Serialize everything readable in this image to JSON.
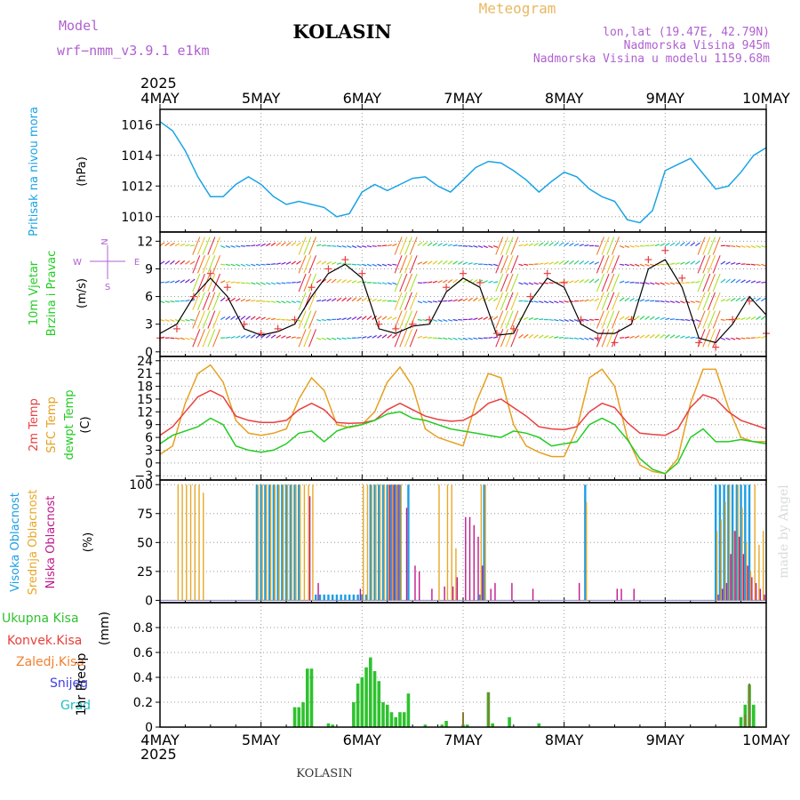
{
  "header": {
    "model_label": "Model",
    "model_name": "wrf−nmm_v3.9.1  e1km",
    "station": "KOLASIN",
    "product": "Meteogram",
    "coords": "lon,lat (19.47E, 42.79N)",
    "elevation": "Nadmorska Visina 945m",
    "model_elevation": "Nadmorska Visina u modelu 1159.68m",
    "footer_station": "KOLASIN",
    "watermark": "made by Angel"
  },
  "time_axis": {
    "year": "2025",
    "ticks": [
      "4MAY",
      "5MAY",
      "6MAY",
      "7MAY",
      "8MAY",
      "9MAY",
      "10MAY"
    ],
    "range_hours": [
      0,
      144
    ]
  },
  "colors": {
    "pressure": "#1aa3e6",
    "temp2m": "#e84040",
    "sfc": "#e6a020",
    "dewpt": "#22cc22",
    "cloud_high": "#1a9ee6",
    "cloud_mid": "#e6a828",
    "cloud_low": "#c0188c",
    "precip_total": "#2ec22e",
    "precip_conv": "#e8403a",
    "precip_frz": "#f08030",
    "precip_snow": "#4040e0",
    "precip_grad": "#20c0c0",
    "wind_speed": "#000000"
  },
  "chart_data": [
    {
      "type": "line",
      "panel": "pressure",
      "ylabel": "Pritisak na nivou mora",
      "unit": "(hPa)",
      "ylim": [
        1009,
        1017
      ],
      "yticks": [
        1010,
        1012,
        1014,
        1016
      ],
      "grid": true,
      "series": [
        {
          "x": [
            0,
            3,
            6,
            9,
            12,
            15,
            18,
            21,
            24,
            27,
            30,
            33,
            36,
            39,
            42,
            45,
            48,
            51,
            54,
            57,
            60,
            63,
            66,
            69,
            72,
            75,
            78,
            81,
            84,
            87,
            90,
            93,
            96,
            99,
            102,
            105,
            108,
            111,
            114,
            117,
            120,
            123,
            126,
            129,
            132,
            135,
            138,
            141,
            144
          ],
          "values": [
            1016.2,
            1015.6,
            1014.3,
            1012.6,
            1011.3,
            1011.3,
            1012.1,
            1012.6,
            1012.1,
            1011.3,
            1010.8,
            1011.0,
            1010.8,
            1010.6,
            1010.0,
            1010.2,
            1011.6,
            1012.1,
            1011.7,
            1012.1,
            1012.5,
            1012.6,
            1012.0,
            1011.6,
            1012.4,
            1013.2,
            1013.6,
            1013.5,
            1013.0,
            1012.4,
            1011.6,
            1012.3,
            1012.9,
            1012.6,
            1011.8,
            1011.3,
            1011.0,
            1009.8,
            1009.6,
            1010.4,
            1013.0,
            1013.4,
            1013.8,
            1012.8,
            1011.8,
            1012.0,
            1012.9,
            1014.0,
            1014.5
          ]
        }
      ]
    },
    {
      "type": "line",
      "panel": "wind",
      "ylabel": "10m Vjetar Brzina i Pravac",
      "unit": "(m/s)",
      "compass": [
        "N",
        "S",
        "W",
        "E"
      ],
      "ylim": [
        -0.5,
        13
      ],
      "yticks": [
        0,
        3,
        6,
        9,
        12
      ],
      "grid": true,
      "series": [
        {
          "name": "speed",
          "x": [
            0,
            4,
            8,
            12,
            16,
            20,
            24,
            28,
            32,
            36,
            40,
            44,
            48,
            52,
            56,
            60,
            64,
            68,
            72,
            76,
            80,
            84,
            88,
            92,
            96,
            100,
            104,
            108,
            112,
            116,
            120,
            124,
            128,
            132,
            136,
            140,
            144
          ],
          "values": [
            2,
            3,
            6,
            8,
            6,
            2.5,
            1.8,
            2.2,
            3,
            6,
            8.5,
            9.5,
            8,
            2.5,
            2,
            2.8,
            3,
            6.5,
            8,
            7,
            1.8,
            2,
            5.5,
            8,
            7,
            3,
            2,
            2,
            3,
            9,
            10,
            7,
            1.5,
            1,
            3,
            6,
            4
          ]
        },
        {
          "name": "gust",
          "x": [
            0,
            4,
            8,
            12,
            16,
            20,
            24,
            28,
            32,
            36,
            40,
            44,
            48,
            52,
            56,
            60,
            64,
            68,
            72,
            76,
            80,
            84,
            88,
            92,
            96,
            100,
            104,
            108,
            112,
            116,
            120,
            124,
            128,
            132,
            136,
            140,
            144
          ],
          "values": [
            1.5,
            2.5,
            6,
            8.5,
            7,
            3,
            2,
            2.5,
            3.5,
            7,
            9,
            10,
            8.5,
            3,
            2.5,
            3,
            3.5,
            7,
            8.5,
            7.5,
            2,
            2.5,
            6,
            8.5,
            7.5,
            3.5,
            1.5,
            1,
            3.5,
            10,
            11,
            8,
            1,
            0.5,
            3.5,
            5.5,
            2
          ]
        }
      ]
    },
    {
      "type": "line",
      "panel": "temperature",
      "unit": "(C)",
      "ylim": [
        -4,
        25
      ],
      "yticks": [
        -3,
        0,
        3,
        6,
        9,
        12,
        15,
        18,
        21,
        24
      ],
      "grid": true,
      "series": [
        {
          "name": "2m Temp",
          "x": [
            0,
            3,
            6,
            9,
            12,
            15,
            18,
            21,
            24,
            27,
            30,
            33,
            36,
            39,
            42,
            45,
            48,
            51,
            54,
            57,
            60,
            63,
            66,
            69,
            72,
            75,
            78,
            81,
            84,
            87,
            90,
            93,
            96,
            99,
            102,
            105,
            108,
            111,
            114,
            117,
            120,
            123,
            126,
            129,
            132,
            135,
            138,
            141,
            144
          ],
          "values": [
            6.5,
            8.5,
            12,
            15.5,
            17,
            15.5,
            11,
            10,
            9.5,
            9.5,
            10,
            12.5,
            14,
            12.5,
            9.5,
            9.3,
            9.4,
            10,
            12.5,
            14,
            12.5,
            11,
            10.2,
            9.8,
            10,
            11.5,
            14,
            15,
            13,
            11,
            8.5,
            8,
            7.8,
            8.5,
            12,
            14,
            13,
            9.5,
            7,
            6.7,
            6.5,
            8,
            13,
            16,
            15,
            12,
            10,
            9,
            8
          ]
        },
        {
          "name": "SFC Temp",
          "x": [
            0,
            3,
            6,
            9,
            12,
            15,
            18,
            21,
            24,
            27,
            30,
            33,
            36,
            39,
            42,
            45,
            48,
            51,
            54,
            57,
            60,
            63,
            66,
            69,
            72,
            75,
            78,
            81,
            84,
            87,
            90,
            93,
            96,
            99,
            102,
            105,
            108,
            111,
            114,
            117,
            120,
            123,
            126,
            129,
            132,
            135,
            138,
            141,
            144
          ],
          "values": [
            2,
            4,
            14,
            21,
            23,
            19,
            10,
            7,
            6.5,
            7,
            8,
            15,
            20,
            17,
            9,
            8.3,
            9,
            12,
            19,
            22.5,
            18,
            8,
            6,
            5,
            4,
            14,
            21,
            20,
            9,
            4,
            2.5,
            1.5,
            1.5,
            8,
            20,
            22,
            18,
            6,
            -0.5,
            -2,
            -2.5,
            1,
            14,
            22,
            22,
            13,
            6,
            5,
            5
          ]
        },
        {
          "name": "dewpt Temp",
          "x": [
            0,
            3,
            6,
            9,
            12,
            15,
            18,
            21,
            24,
            27,
            30,
            33,
            36,
            39,
            42,
            45,
            48,
            51,
            54,
            57,
            60,
            63,
            66,
            69,
            72,
            75,
            78,
            81,
            84,
            87,
            90,
            93,
            96,
            99,
            102,
            105,
            108,
            111,
            114,
            117,
            120,
            123,
            126,
            129,
            132,
            135,
            138,
            141,
            144
          ],
          "values": [
            4.5,
            6.5,
            7.5,
            8.5,
            10.5,
            9,
            4,
            3,
            2.5,
            3,
            4.5,
            7,
            7.5,
            5,
            7.5,
            8.5,
            9,
            10,
            11.5,
            12,
            10.5,
            10,
            9,
            8,
            7.5,
            7,
            6.5,
            6,
            7.5,
            7,
            6,
            4,
            4.5,
            5,
            9,
            10.5,
            9,
            5.5,
            1,
            -1.5,
            -2.5,
            0,
            6,
            8,
            5,
            5,
            5.5,
            5,
            4.5
          ]
        }
      ]
    },
    {
      "type": "bar",
      "panel": "clouds",
      "unit": "(%)",
      "ylim": [
        -2,
        104
      ],
      "yticks": [
        0,
        25,
        50,
        75,
        100
      ],
      "grid": true,
      "series": [
        {
          "name": "Visoka Oblacnost",
          "x": [
            23,
            24,
            25,
            26,
            27,
            28,
            29,
            30,
            31,
            32,
            33,
            37,
            38,
            39,
            40,
            41,
            42,
            43,
            44,
            45,
            46,
            47,
            48,
            49,
            50,
            51,
            52,
            53,
            54,
            55,
            56,
            57,
            59,
            76,
            77,
            101,
            132,
            133,
            134,
            135,
            136,
            137,
            138,
            139,
            140
          ],
          "values": [
            100,
            100,
            100,
            100,
            100,
            100,
            100,
            100,
            100,
            100,
            100,
            5,
            5,
            5,
            5,
            5,
            5,
            5,
            5,
            5,
            5,
            5,
            5,
            5,
            100,
            100,
            100,
            100,
            100,
            100,
            100,
            100,
            100,
            5,
            100,
            100,
            100,
            100,
            100,
            100,
            100,
            100,
            100,
            100,
            100
          ]
        },
        {
          "name": "Srednja Oblacnost",
          "x": [
            4,
            5,
            6,
            7,
            8,
            9,
            10,
            23,
            24,
            25,
            26,
            27,
            28,
            29,
            30,
            31,
            32,
            33,
            34,
            35,
            36,
            48,
            49,
            50,
            51,
            52,
            53,
            54,
            55,
            56,
            57,
            66,
            68,
            69,
            70,
            76,
            77,
            101,
            132,
            133,
            134,
            135,
            136,
            137,
            138,
            139,
            140,
            141,
            142,
            143
          ],
          "values": [
            100,
            100,
            100,
            100,
            100,
            100,
            93,
            100,
            100,
            100,
            100,
            100,
            100,
            100,
            100,
            100,
            100,
            100,
            100,
            100,
            100,
            100,
            100,
            100,
            100,
            100,
            100,
            100,
            100,
            100,
            100,
            100,
            100,
            100,
            45,
            100,
            100,
            85,
            60,
            70,
            85,
            100,
            60,
            100,
            80,
            50,
            25,
            100,
            48,
            60
          ]
        },
        {
          "name": "Niska Oblacnost",
          "x": [
            35,
            37,
            47,
            54,
            55,
            56,
            58,
            60,
            61,
            64,
            67,
            69,
            70,
            72,
            73,
            74,
            75,
            76,
            78,
            79,
            83,
            88,
            99,
            108,
            109,
            112,
            132,
            133,
            134,
            135,
            136,
            137,
            138,
            139,
            140,
            141,
            142,
            143
          ],
          "values": [
            90,
            15,
            10,
            100,
            100,
            100,
            80,
            30,
            25,
            10,
            12,
            12,
            20,
            72,
            72,
            65,
            55,
            30,
            10,
            15,
            15,
            10,
            15,
            10,
            10,
            10,
            5,
            10,
            15,
            40,
            60,
            55,
            40,
            30,
            20,
            15,
            10,
            5
          ]
        }
      ]
    },
    {
      "type": "bar",
      "panel": "precipitation",
      "ylabel": "1hr Precip",
      "unit": "(mm)",
      "ylim": [
        0,
        1.0
      ],
      "yticks": [
        0,
        0.2,
        0.4,
        0.6,
        0.8
      ],
      "grid": true,
      "legend": [
        "Ukupna Kisa",
        "Konvek.Kisa",
        "Zaledj.Kisa",
        "Snijeg",
        "Grad"
      ],
      "series": [
        {
          "name": "Ukupna Kisa",
          "x": [
            32,
            33,
            34,
            35,
            36,
            40,
            41,
            46,
            47,
            48,
            49,
            50,
            51,
            52,
            53,
            54,
            55,
            56,
            57,
            58,
            59,
            63,
            67,
            68,
            72,
            73,
            78,
            79,
            83,
            90,
            138,
            139,
            140,
            141
          ],
          "values": [
            0.16,
            0.16,
            0.2,
            0.47,
            0.47,
            0.03,
            0.02,
            0.2,
            0.35,
            0.4,
            0.48,
            0.56,
            0.45,
            0.37,
            0.2,
            0.18,
            0.12,
            0.08,
            0.12,
            0.12,
            0.27,
            0.02,
            0.02,
            0.05,
            0.02,
            0.02,
            0.28,
            0.03,
            0.08,
            0.03,
            0.08,
            0.18,
            0.34,
            0.18
          ]
        },
        {
          "name": "Konvek.Kisa",
          "x": [
            72,
            78,
            139,
            140
          ],
          "values": [
            0.12,
            0.28,
            0.1,
            0.35
          ]
        }
      ]
    }
  ]
}
